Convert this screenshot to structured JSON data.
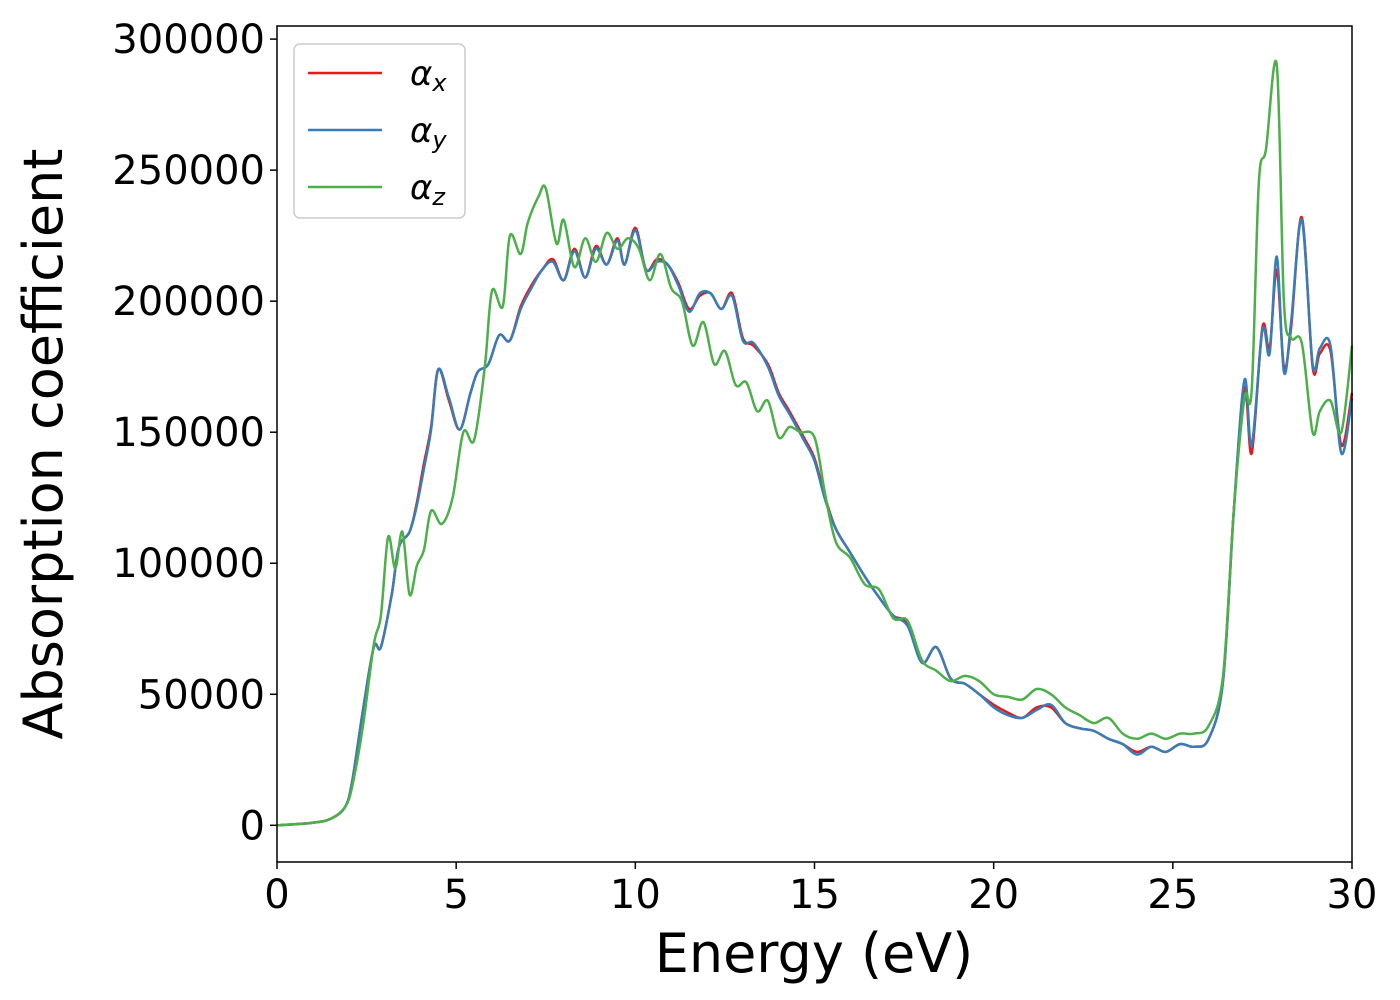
{
  "chart_data": {
    "type": "line",
    "title": "",
    "xlabel": "Energy (eV)",
    "ylabel": "Absorption coefficient",
    "xlim": [
      0,
      30
    ],
    "ylim": [
      -14000,
      305000
    ],
    "xticks": [
      0,
      5,
      10,
      15,
      20,
      25,
      30
    ],
    "yticks": [
      0,
      50000,
      100000,
      150000,
      200000,
      250000,
      300000
    ],
    "grid": false,
    "legend_position": "top-left",
    "series": [
      {
        "name": "α",
        "subscript": "x",
        "color": "#e41a1c",
        "x": [
          0,
          1,
          1.5,
          1.9,
          2.1,
          2.4,
          2.7,
          2.9,
          3.2,
          3.4,
          3.7,
          3.9,
          4.1,
          4.3,
          4.5,
          4.8,
          5.1,
          5.4,
          5.6,
          5.9,
          6.2,
          6.5,
          6.8,
          7.1,
          7.4,
          7.7,
          8.0,
          8.3,
          8.6,
          8.9,
          9.2,
          9.5,
          9.7,
          10.0,
          10.3,
          10.6,
          10.9,
          11.2,
          11.5,
          11.8,
          12.1,
          12.4,
          12.7,
          13.0,
          13.3,
          13.7,
          14.0,
          14.3,
          14.7,
          15.0,
          15.3,
          15.6,
          16.0,
          16.4,
          16.8,
          17.2,
          17.6,
          18.0,
          18.4,
          18.8,
          19.2,
          19.6,
          20.0,
          20.4,
          20.8,
          21.2,
          21.6,
          22.0,
          22.4,
          22.8,
          23.2,
          23.6,
          24.0,
          24.4,
          24.8,
          25.2,
          25.6,
          26.0,
          26.4,
          26.7,
          27.0,
          27.2,
          27.5,
          27.7,
          27.9,
          28.1,
          28.3,
          28.6,
          28.9,
          29.1,
          29.4,
          29.7,
          30.0
        ],
        "y": [
          0,
          1000,
          2500,
          7000,
          17000,
          44000,
          68000,
          68000,
          88000,
          106000,
          112000,
          123000,
          138000,
          152000,
          174000,
          162000,
          151000,
          165000,
          173000,
          176000,
          187000,
          185000,
          198000,
          206000,
          212000,
          216000,
          208000,
          220000,
          209000,
          221000,
          214000,
          224000,
          214000,
          228000,
          212000,
          216000,
          214000,
          207000,
          197000,
          202000,
          203000,
          197000,
          203000,
          186000,
          183000,
          176000,
          165000,
          158000,
          148000,
          140000,
          125000,
          113000,
          104000,
          95000,
          87000,
          80000,
          77000,
          62000,
          68000,
          56000,
          54000,
          50000,
          46000,
          43000,
          41000,
          45000,
          45000,
          39000,
          37000,
          36000,
          33000,
          31000,
          28000,
          30000,
          28000,
          31000,
          30000,
          33000,
          55000,
          120000,
          167000,
          142000,
          190000,
          182000,
          212000,
          175000,
          190000,
          232000,
          175000,
          180000,
          181000,
          145000,
          165000
        ]
      },
      {
        "name": "α",
        "subscript": "y",
        "color": "#377eb8",
        "x": [
          0,
          1,
          1.5,
          1.9,
          2.1,
          2.4,
          2.7,
          2.9,
          3.2,
          3.4,
          3.7,
          3.9,
          4.1,
          4.3,
          4.5,
          4.8,
          5.1,
          5.4,
          5.6,
          5.9,
          6.2,
          6.5,
          6.8,
          7.1,
          7.4,
          7.7,
          8.0,
          8.3,
          8.6,
          8.9,
          9.2,
          9.5,
          9.7,
          10.0,
          10.3,
          10.6,
          10.9,
          11.2,
          11.5,
          11.8,
          12.1,
          12.4,
          12.7,
          13.0,
          13.3,
          13.7,
          14.0,
          14.3,
          14.7,
          15.0,
          15.3,
          15.6,
          16.0,
          16.4,
          16.8,
          17.2,
          17.6,
          18.0,
          18.4,
          18.8,
          19.2,
          19.6,
          20.0,
          20.4,
          20.8,
          21.2,
          21.6,
          22.0,
          22.4,
          22.8,
          23.2,
          23.6,
          24.0,
          24.4,
          24.8,
          25.2,
          25.6,
          26.0,
          26.4,
          26.7,
          27.0,
          27.2,
          27.5,
          27.7,
          27.9,
          28.1,
          28.3,
          28.6,
          28.9,
          29.1,
          29.4,
          29.7,
          30.0
        ],
        "y": [
          0,
          1000,
          2500,
          7000,
          17000,
          44000,
          68000,
          68000,
          88000,
          106000,
          112000,
          122000,
          136000,
          151000,
          174000,
          163000,
          151000,
          165000,
          173000,
          176000,
          187000,
          185000,
          197000,
          205000,
          212000,
          215000,
          208000,
          219000,
          209000,
          220000,
          214000,
          223000,
          214000,
          227000,
          212000,
          215000,
          214000,
          206000,
          196000,
          203000,
          203000,
          197000,
          202000,
          185000,
          184000,
          175000,
          164000,
          157000,
          147000,
          139000,
          124000,
          113000,
          104000,
          95000,
          87000,
          80000,
          76000,
          62000,
          68000,
          56000,
          54000,
          50000,
          45000,
          42000,
          41000,
          44000,
          46000,
          39000,
          37000,
          36000,
          33000,
          31000,
          27000,
          30000,
          28000,
          31000,
          30000,
          33000,
          55000,
          120000,
          170000,
          145000,
          189000,
          180000,
          217000,
          173000,
          192000,
          231000,
          176000,
          182000,
          183000,
          142000,
          163000
        ]
      },
      {
        "name": "α",
        "subscript": "z",
        "color": "#4daf4a",
        "x": [
          0,
          1,
          1.5,
          1.9,
          2.1,
          2.4,
          2.7,
          2.9,
          3.1,
          3.3,
          3.5,
          3.7,
          3.9,
          4.1,
          4.3,
          4.6,
          4.9,
          5.2,
          5.5,
          5.8,
          6.0,
          6.3,
          6.5,
          6.8,
          7.0,
          7.3,
          7.5,
          7.8,
          8.0,
          8.3,
          8.6,
          8.9,
          9.2,
          9.5,
          9.8,
          10.1,
          10.4,
          10.7,
          11.0,
          11.3,
          11.6,
          11.9,
          12.2,
          12.5,
          12.8,
          13.1,
          13.4,
          13.7,
          14.0,
          14.3,
          14.6,
          15.0,
          15.3,
          15.6,
          16.0,
          16.4,
          16.8,
          17.2,
          17.6,
          18.0,
          18.4,
          18.8,
          19.2,
          19.6,
          20.0,
          20.4,
          20.8,
          21.2,
          21.6,
          22.0,
          22.4,
          22.8,
          23.2,
          23.6,
          24.0,
          24.4,
          24.8,
          25.2,
          25.6,
          26.0,
          26.4,
          26.7,
          27.0,
          27.2,
          27.4,
          27.6,
          27.9,
          28.1,
          28.3,
          28.6,
          28.9,
          29.1,
          29.4,
          29.7,
          30.0
        ],
        "y": [
          0,
          1000,
          2500,
          7000,
          15000,
          38000,
          69000,
          80000,
          110000,
          98000,
          112000,
          88000,
          99000,
          105000,
          120000,
          115000,
          125000,
          150000,
          147000,
          175000,
          204000,
          198000,
          225000,
          218000,
          230000,
          240000,
          243000,
          222000,
          231000,
          213000,
          224000,
          215000,
          226000,
          220000,
          224000,
          220000,
          208000,
          218000,
          205000,
          200000,
          183000,
          192000,
          176000,
          181000,
          168000,
          169000,
          158000,
          162000,
          148000,
          152000,
          150000,
          148000,
          126000,
          108000,
          102000,
          92000,
          90000,
          79000,
          78000,
          63000,
          59000,
          55000,
          57000,
          55000,
          50000,
          49000,
          48000,
          52000,
          50000,
          45000,
          42000,
          39000,
          41000,
          35000,
          33000,
          35000,
          33000,
          35000,
          35000,
          38000,
          57000,
          120000,
          163000,
          166000,
          245000,
          258000,
          290000,
          200000,
          186000,
          184000,
          150000,
          158000,
          162000,
          150000,
          183000
        ]
      }
    ]
  }
}
